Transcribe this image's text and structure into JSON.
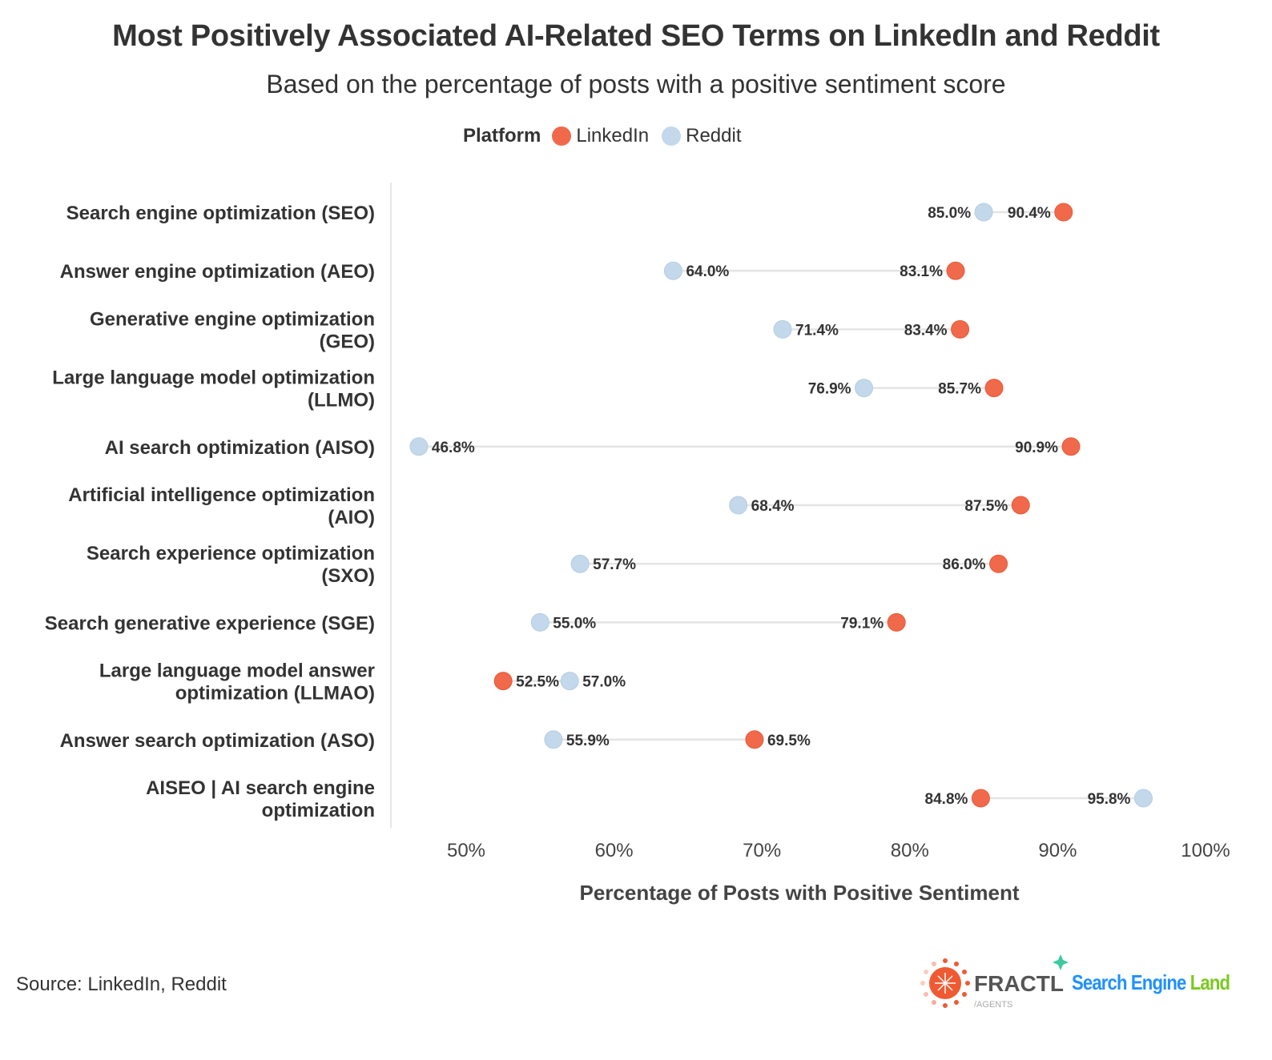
{
  "chart_data": {
    "type": "dumbbell",
    "title": "Most Positively Associated AI-Related SEO Terms on LinkedIn and Reddit",
    "subtitle": "Based on the percentage of posts with a positive sentiment score",
    "xlabel": "Percentage of Posts with Positive Sentiment",
    "xlim": [
      50,
      100
    ],
    "xticks": [
      "50%",
      "60%",
      "70%",
      "80%",
      "90%",
      "100%"
    ],
    "xtick_values": [
      50,
      60,
      70,
      80,
      90,
      100
    ],
    "legend": {
      "title": "Platform",
      "placement": "top"
    },
    "categories": [
      [
        "Search engine optimization (SEO)"
      ],
      [
        "Answer engine optimization (AEO)"
      ],
      [
        "Generative engine optimization",
        "(GEO)"
      ],
      [
        "Large language model optimization",
        "(LLMO)"
      ],
      [
        "AI search optimization (AISO)"
      ],
      [
        "Artificial intelligence optimization",
        "(AIO)"
      ],
      [
        "Search experience optimization",
        "(SXO)"
      ],
      [
        "Search generative experience (SGE)"
      ],
      [
        "Large language model answer",
        "optimization (LLMAO)"
      ],
      [
        "Answer search optimization (ASO)"
      ],
      [
        "AISEO | AI search engine",
        "optimization"
      ]
    ],
    "series": [
      {
        "name": "LinkedIn",
        "color": "#f0694a",
        "values": [
          90.4,
          83.1,
          83.4,
          85.7,
          90.9,
          87.5,
          86.0,
          79.1,
          52.5,
          69.5,
          84.8
        ]
      },
      {
        "name": "Reddit",
        "color": "#c3d8ea",
        "values": [
          85.0,
          64.0,
          71.4,
          76.9,
          46.8,
          68.4,
          57.7,
          55.0,
          57.0,
          55.9,
          95.8
        ]
      }
    ],
    "grid": false
  },
  "footer": {
    "source": "Source: LinkedIn, Reddit",
    "logos": {
      "fractl": "FRACTL",
      "fractl_sub": "/AGENTS",
      "sel_a": "Search Engine ",
      "sel_b": "Land"
    }
  }
}
